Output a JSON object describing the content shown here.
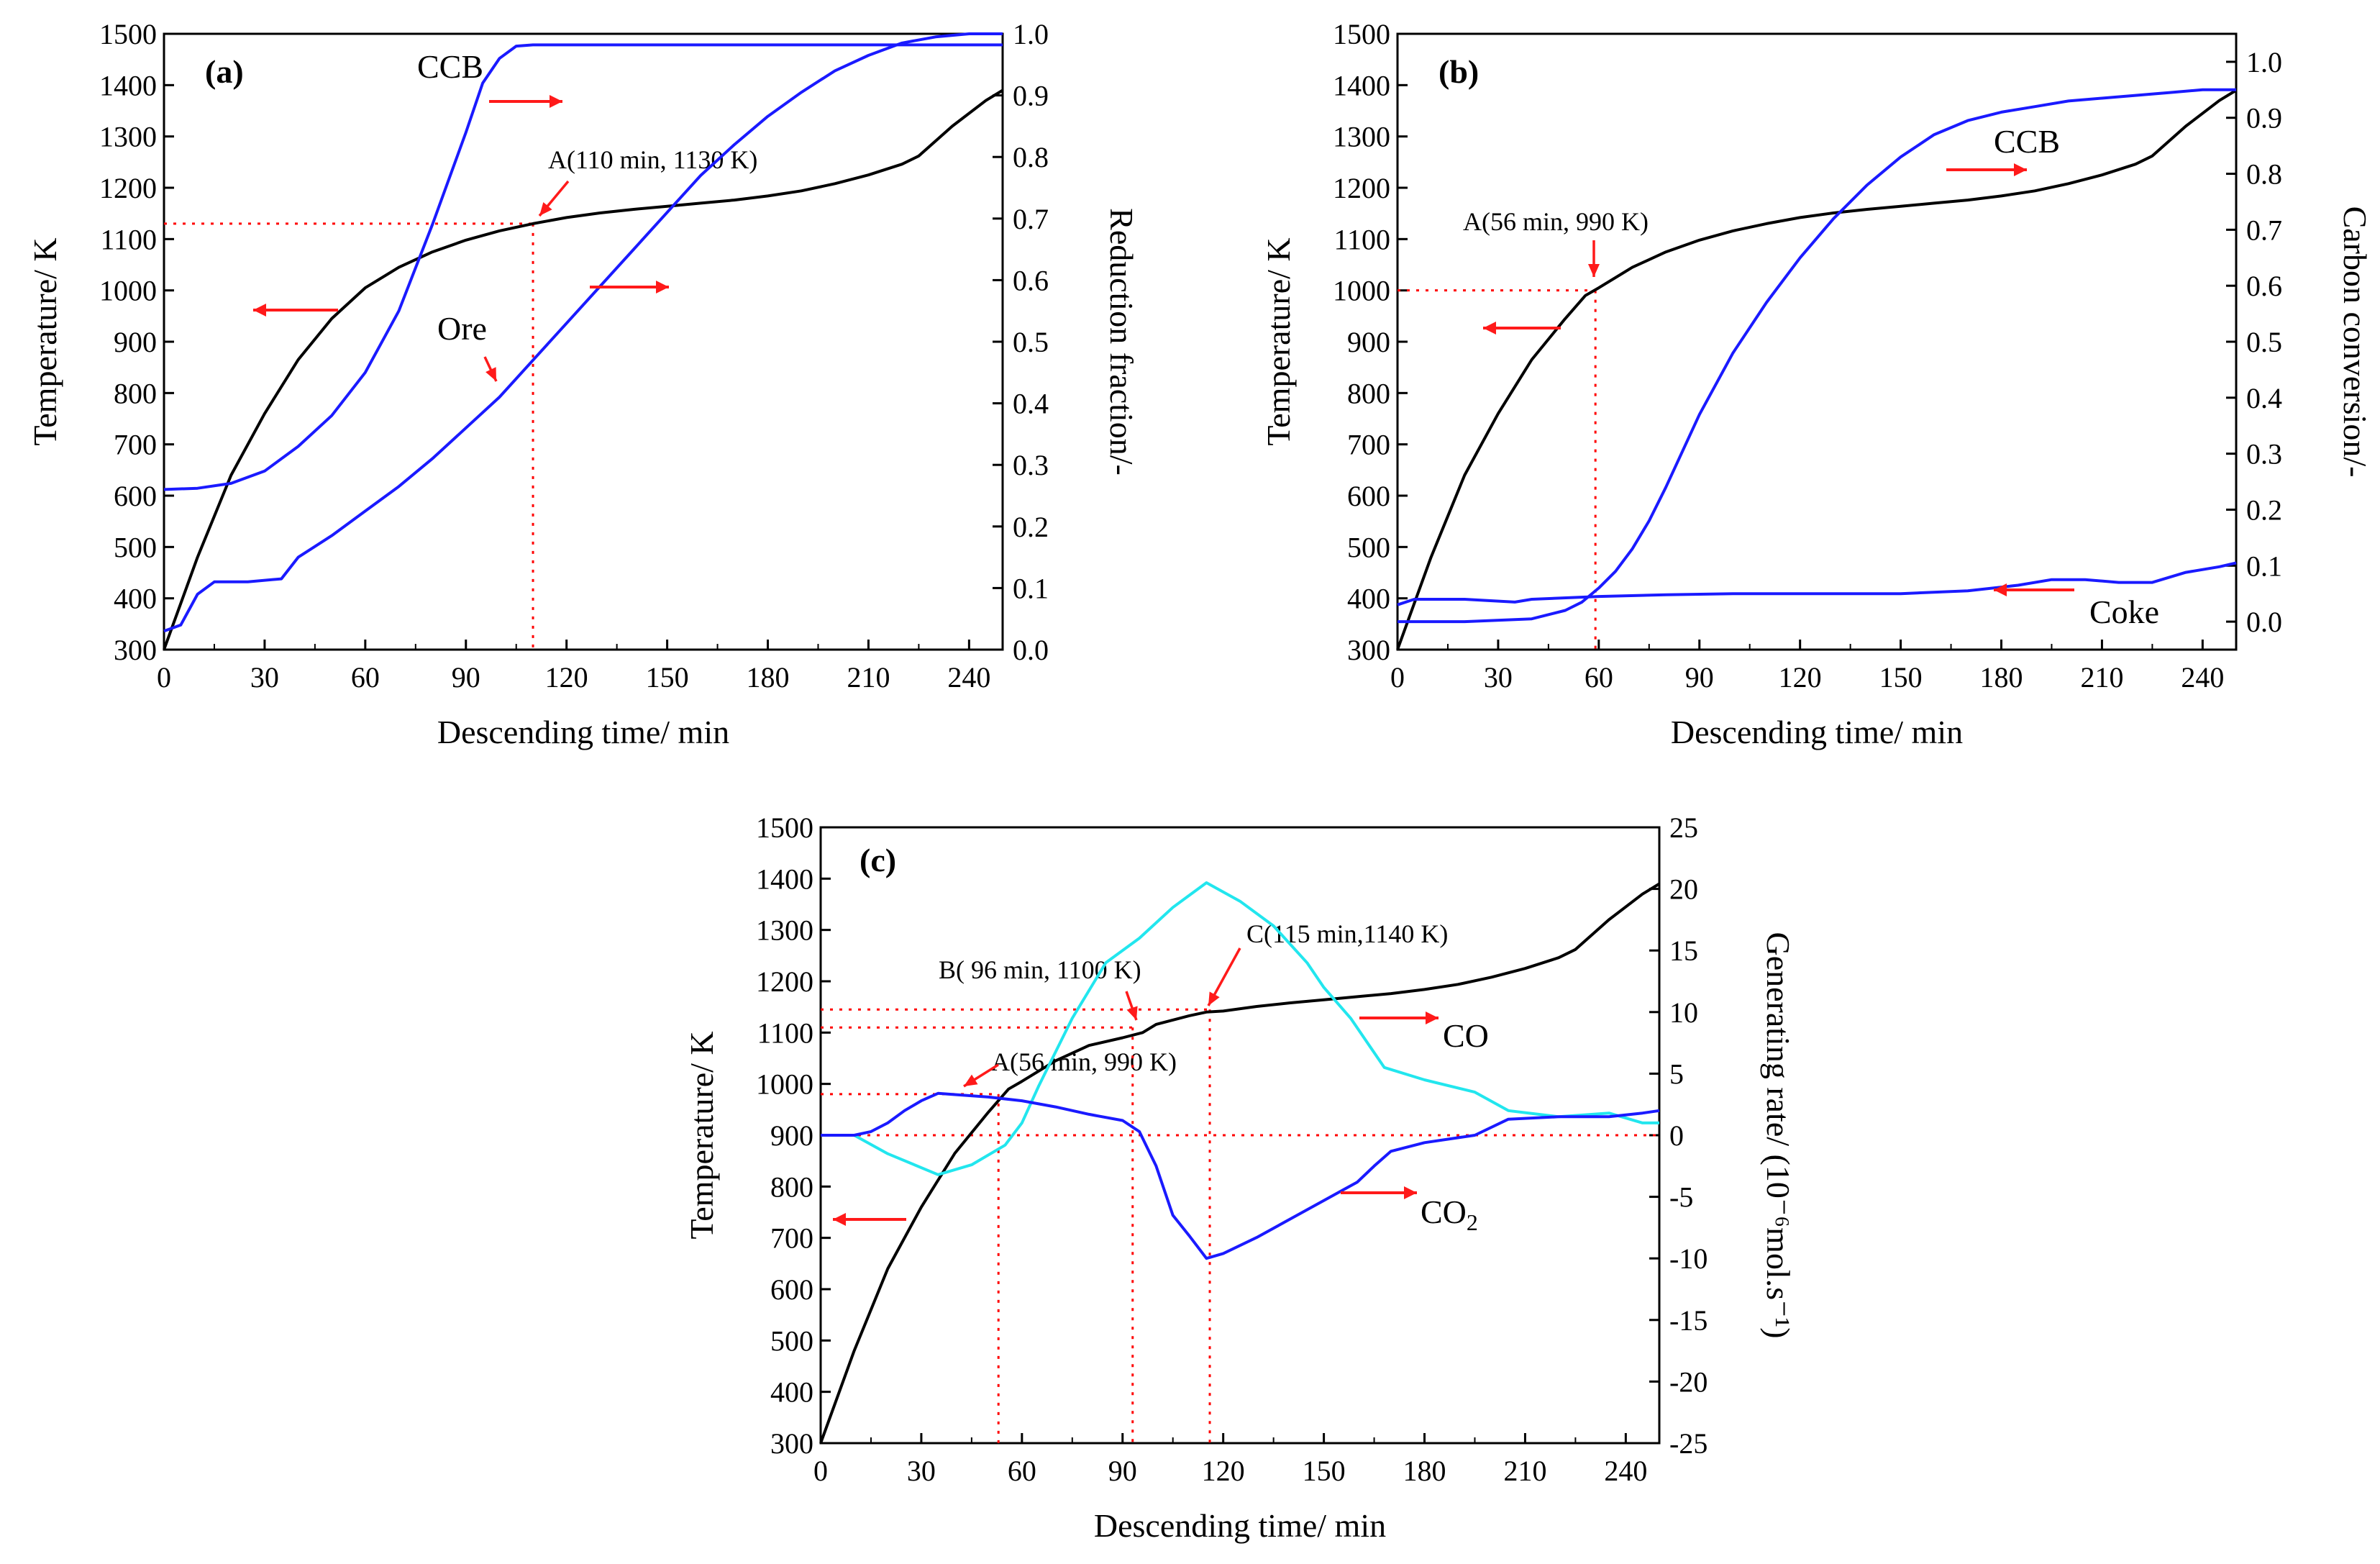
{
  "colors": {
    "temperature": "#000000",
    "blue": "#1a1aff",
    "cyan": "#22e6ee",
    "guide": "#ff0000",
    "arrow": "#ff1a1a"
  },
  "chart_data": [
    {
      "panel": "(a)",
      "type": "line",
      "xlabel": "Descending time/ min",
      "ylabel": "Temperature/ K",
      "y2label": "Reduction fraction/-",
      "xlim": [
        0,
        250
      ],
      "ylim": [
        300,
        1500
      ],
      "y2lim": [
        0,
        1.0
      ],
      "xticks": [
        0,
        30,
        60,
        90,
        120,
        150,
        180,
        210,
        240
      ],
      "yticks": [
        300,
        400,
        500,
        600,
        700,
        800,
        900,
        1000,
        1100,
        1200,
        1300,
        1400,
        1500
      ],
      "y2ticks": [
        0.0,
        0.1,
        0.2,
        0.3,
        0.4,
        0.5,
        0.6,
        0.7,
        0.8,
        0.9,
        1.0
      ],
      "y2tick_labels": [
        "0.0",
        "0.1",
        "0.2",
        "0.3",
        "0.4",
        "0.5",
        "0.6",
        "0.7",
        "0.8",
        "0.9",
        "1.0"
      ],
      "series": [
        {
          "name": "Temperature",
          "axis": "left",
          "color": "#000000",
          "x": [
            0,
            10,
            20,
            30,
            40,
            50,
            60,
            70,
            80,
            90,
            100,
            110,
            120,
            130,
            140,
            150,
            160,
            170,
            180,
            190,
            200,
            210,
            220,
            225,
            235,
            245,
            250
          ],
          "y": [
            300,
            480,
            640,
            760,
            865,
            945,
            1005,
            1045,
            1075,
            1098,
            1116,
            1130,
            1142,
            1151,
            1158,
            1164,
            1170,
            1176,
            1184,
            1194,
            1208,
            1225,
            1246,
            1262,
            1320,
            1370,
            1390
          ]
        },
        {
          "name": "CCB",
          "axis": "right",
          "color": "#1a1aff",
          "x": [
            0,
            10,
            20,
            30,
            40,
            50,
            60,
            70,
            80,
            90,
            95,
            100,
            105,
            110,
            250
          ],
          "y": [
            0.26,
            0.262,
            0.27,
            0.29,
            0.33,
            0.38,
            0.45,
            0.55,
            0.69,
            0.84,
            0.92,
            0.96,
            0.98,
            0.982,
            0.982
          ]
        },
        {
          "name": "Ore",
          "axis": "right",
          "color": "#1a1aff",
          "x": [
            0,
            5,
            10,
            15,
            25,
            35,
            40,
            50,
            60,
            70,
            80,
            90,
            100,
            110,
            120,
            130,
            140,
            150,
            160,
            170,
            180,
            190,
            200,
            210,
            220,
            230,
            240,
            250
          ],
          "y": [
            0.03,
            0.04,
            0.09,
            0.11,
            0.11,
            0.115,
            0.15,
            0.185,
            0.225,
            0.265,
            0.31,
            0.36,
            0.41,
            0.47,
            0.53,
            0.59,
            0.65,
            0.71,
            0.77,
            0.82,
            0.866,
            0.905,
            0.94,
            0.965,
            0.985,
            0.995,
            1.0,
            1.0
          ]
        }
      ],
      "annotations": [
        "CCB",
        "Ore",
        "A(110 min, 1130 K)"
      ],
      "guide_point": {
        "x": 110,
        "y": 1130
      }
    },
    {
      "panel": "(b)",
      "type": "line",
      "xlabel": "Descending time/ min",
      "ylabel": "Temperature/ K",
      "y2label": "Carbon conversion/-",
      "xlim": [
        0,
        250
      ],
      "ylim": [
        300,
        1500
      ],
      "y2lim": [
        -0.05,
        1.05
      ],
      "xticks": [
        0,
        30,
        60,
        90,
        120,
        150,
        180,
        210,
        240
      ],
      "yticks": [
        300,
        400,
        500,
        600,
        700,
        800,
        900,
        1000,
        1100,
        1200,
        1300,
        1400,
        1500
      ],
      "y2ticks": [
        0.0,
        0.1,
        0.2,
        0.3,
        0.4,
        0.5,
        0.6,
        0.7,
        0.8,
        0.9,
        1.0
      ],
      "y2tick_labels": [
        "0.0",
        "0.1",
        "0.2",
        "0.3",
        "0.4",
        "0.5",
        "0.6",
        "0.7",
        "0.8",
        "0.9",
        "1.0"
      ],
      "series": [
        {
          "name": "Temperature",
          "axis": "left",
          "color": "#000000",
          "x": [
            0,
            10,
            20,
            30,
            40,
            50,
            56,
            60,
            70,
            80,
            90,
            100,
            110,
            120,
            130,
            140,
            150,
            160,
            170,
            180,
            190,
            200,
            210,
            220,
            225,
            235,
            245,
            250
          ],
          "y": [
            300,
            480,
            640,
            760,
            865,
            945,
            990,
            1005,
            1045,
            1075,
            1098,
            1116,
            1130,
            1142,
            1151,
            1158,
            1164,
            1170,
            1176,
            1184,
            1194,
            1208,
            1225,
            1246,
            1262,
            1320,
            1370,
            1390
          ]
        },
        {
          "name": "CCB",
          "axis": "right",
          "color": "#1a1aff",
          "x": [
            0,
            20,
            40,
            50,
            55,
            60,
            65,
            70,
            75,
            80,
            90,
            100,
            110,
            120,
            130,
            140,
            150,
            160,
            170,
            180,
            190,
            200,
            210,
            220,
            230,
            240,
            250
          ],
          "y": [
            0.0,
            0.0,
            0.005,
            0.02,
            0.035,
            0.06,
            0.09,
            0.13,
            0.18,
            0.24,
            0.37,
            0.48,
            0.57,
            0.65,
            0.72,
            0.78,
            0.83,
            0.87,
            0.895,
            0.91,
            0.92,
            0.93,
            0.935,
            0.94,
            0.945,
            0.95,
            0.95
          ]
        },
        {
          "name": "Coke",
          "axis": "right",
          "color": "#1a1aff",
          "x": [
            0,
            5,
            20,
            35,
            40,
            60,
            80,
            100,
            120,
            150,
            170,
            185,
            195,
            205,
            215,
            225,
            235,
            245,
            250
          ],
          "y": [
            0.03,
            0.04,
            0.04,
            0.035,
            0.04,
            0.045,
            0.048,
            0.05,
            0.05,
            0.05,
            0.055,
            0.065,
            0.075,
            0.075,
            0.07,
            0.07,
            0.088,
            0.098,
            0.105
          ]
        }
      ],
      "annotations": [
        "CCB",
        "Coke",
        "A(56 min, 990 K)"
      ],
      "guide_point": {
        "x": 59,
        "y": 1000
      }
    },
    {
      "panel": "(c)",
      "type": "line",
      "xlabel": "Descending time/ min",
      "ylabel": "Temperature/ K",
      "y2label": "Generating rate/ (10⁻⁶mol.s⁻¹)",
      "xlim": [
        0,
        250
      ],
      "ylim": [
        300,
        1500
      ],
      "y2lim": [
        -25,
        25
      ],
      "xticks": [
        0,
        30,
        60,
        90,
        120,
        150,
        180,
        210,
        240
      ],
      "yticks": [
        300,
        400,
        500,
        600,
        700,
        800,
        900,
        1000,
        1100,
        1200,
        1300,
        1400,
        1500
      ],
      "y2ticks": [
        -25,
        -20,
        -15,
        -10,
        -5,
        0,
        5,
        10,
        15,
        20,
        25
      ],
      "y2tick_labels": [
        "-25",
        "-20",
        "-15",
        "-10",
        "-5",
        "0",
        "5",
        "10",
        "15",
        "20",
        "25"
      ],
      "series": [
        {
          "name": "Temperature",
          "axis": "left",
          "color": "#000000",
          "x": [
            0,
            10,
            20,
            30,
            40,
            50,
            56,
            60,
            70,
            80,
            90,
            96,
            100,
            110,
            115,
            120,
            130,
            140,
            150,
            160,
            170,
            180,
            190,
            200,
            210,
            220,
            225,
            235,
            245,
            250
          ],
          "y": [
            300,
            480,
            640,
            760,
            865,
            945,
            990,
            1005,
            1045,
            1075,
            1090,
            1100,
            1116,
            1133,
            1140,
            1142,
            1151,
            1158,
            1164,
            1170,
            1176,
            1184,
            1194,
            1208,
            1225,
            1246,
            1262,
            1320,
            1370,
            1390
          ]
        },
        {
          "name": "CO",
          "axis": "right",
          "color": "#22e6ee",
          "x": [
            0,
            10,
            20,
            35,
            45,
            55,
            60,
            65,
            75,
            85,
            95,
            105,
            115,
            125,
            135,
            145,
            150,
            158,
            168,
            180,
            195,
            205,
            220,
            235,
            245,
            250
          ],
          "y": [
            0,
            0,
            -1.5,
            -3.2,
            -2.4,
            -0.8,
            1.0,
            4.0,
            9.5,
            14.0,
            16.0,
            18.5,
            20.5,
            19.0,
            17.0,
            14.0,
            12.0,
            9.5,
            5.5,
            4.5,
            3.5,
            2.0,
            1.5,
            1.8,
            1.0,
            1.0
          ]
        },
        {
          "name": "CO2",
          "axis": "right",
          "color": "#1a1aff",
          "x": [
            0,
            10,
            15,
            20,
            25,
            30,
            35,
            40,
            50,
            60,
            70,
            80,
            90,
            95,
            100,
            105,
            110,
            115,
            120,
            130,
            140,
            150,
            160,
            165,
            170,
            180,
            195,
            205,
            220,
            235,
            245,
            250
          ],
          "y": [
            0,
            0,
            0.3,
            1.0,
            2.0,
            2.8,
            3.4,
            3.3,
            3.1,
            2.8,
            2.3,
            1.7,
            1.2,
            0.3,
            -2.5,
            -6.5,
            -8.2,
            -10.0,
            -9.6,
            -8.3,
            -6.8,
            -5.3,
            -3.8,
            -2.5,
            -1.3,
            -0.6,
            0.0,
            1.3,
            1.5,
            1.5,
            1.8,
            2.0
          ]
        }
      ],
      "annotations": [
        "CO",
        "CO₂",
        "A(56 min, 990 K)",
        "B( 96 min, 1100 K)",
        "C(115 min,1140 K)"
      ],
      "guide_points": [
        {
          "x": 53,
          "y": 980
        },
        {
          "x": 93,
          "y": 1110
        },
        {
          "x": 116,
          "y": 1145
        }
      ],
      "zero_line": 0
    }
  ],
  "labels": {
    "a": {
      "panel": "(a)",
      "ccb": "CCB",
      "ore": "Ore",
      "point_a": "A(110 min, 1130 K)"
    },
    "b": {
      "panel": "(b)",
      "ccb": "CCB",
      "coke": "Coke",
      "point_a": "A(56 min, 990 K)"
    },
    "c": {
      "panel": "(c)",
      "co": "CO",
      "co2": "CO",
      "co2_sub": "2",
      "point_a": "A(56 min, 990 K)",
      "point_b": "B( 96 min, 1100 K)",
      "point_c": "C(115 min,1140 K)"
    }
  }
}
